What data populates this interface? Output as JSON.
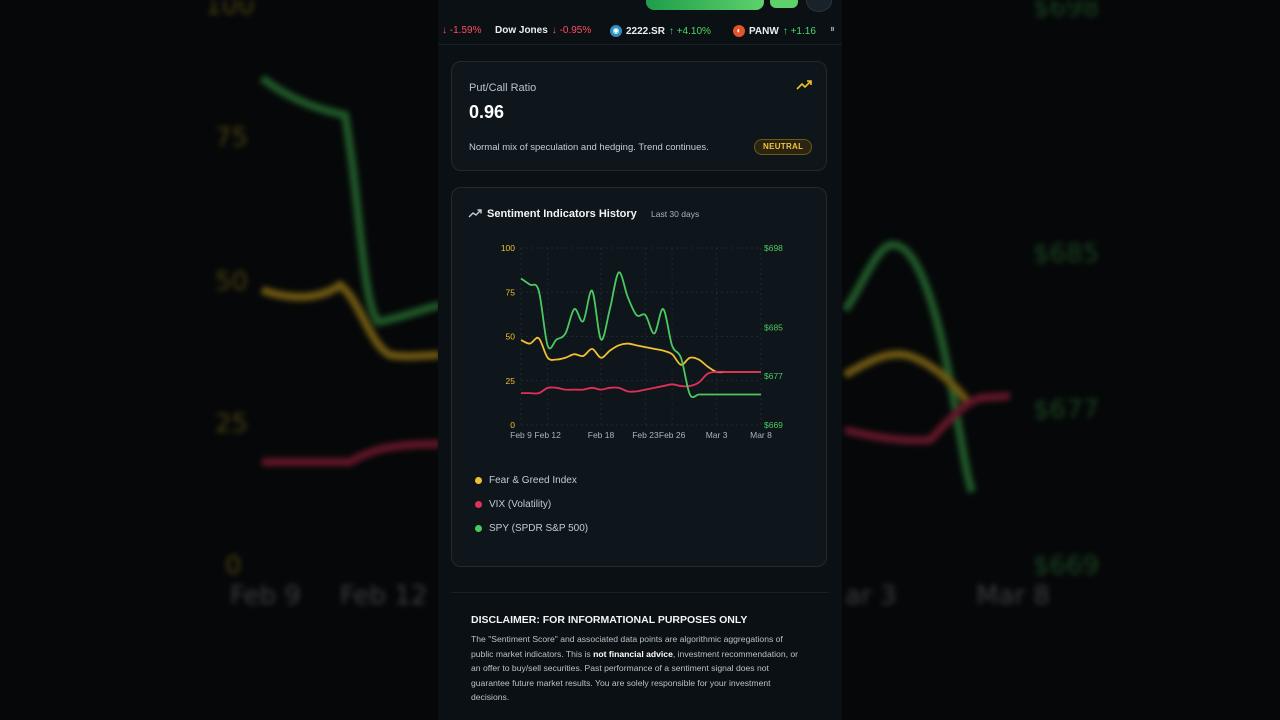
{
  "ticker": [
    {
      "name": "",
      "change": "↓ -1.59%",
      "dir": "down"
    },
    {
      "name": "Dow Jones",
      "change": "↓ -0.95%",
      "dir": "down"
    },
    {
      "name": "2222.SR",
      "change": "↑ +4.10%",
      "dir": "up"
    },
    {
      "name": "PANW",
      "change": "↑ +1.16",
      "dir": "up"
    }
  ],
  "put_call": {
    "title": "Put/Call Ratio",
    "value": "0.96",
    "description": "Normal mix of speculation and hedging. Trend continues.",
    "badge": "NEUTRAL",
    "trend_icon": "trending-up-icon"
  },
  "history": {
    "title": "Sentiment Indicators History",
    "subtitle": "Last 30 days",
    "legend": [
      {
        "label": "Fear & Greed Index",
        "color": "#f0c030"
      },
      {
        "label": "VIX (Volatility)",
        "color": "#e0305a"
      },
      {
        "label": "SPY (SPDR S&P 500)",
        "color": "#4cc860"
      }
    ]
  },
  "chart_data": {
    "type": "line",
    "x": [
      "Feb 9",
      "Feb 10",
      "Feb 11",
      "Feb 12",
      "Feb 13",
      "Feb 14",
      "Feb 15",
      "Feb 16",
      "Feb 17",
      "Feb 18",
      "Feb 19",
      "Feb 20",
      "Feb 21",
      "Feb 22",
      "Feb 23",
      "Feb 24",
      "Feb 25",
      "Feb 26",
      "Feb 27",
      "Feb 28",
      "Mar 1",
      "Mar 2",
      "Mar 3",
      "Mar 4",
      "Mar 5",
      "Mar 6",
      "Mar 7",
      "Mar 8"
    ],
    "x_ticks": [
      "Feb 9",
      "Feb 12",
      "Feb 18",
      "Feb 23",
      "Feb 26",
      "Mar 3",
      "Mar 8"
    ],
    "y_left": {
      "ticks": [
        0,
        25,
        50,
        75,
        100
      ],
      "range": [
        0,
        100
      ]
    },
    "y_right": {
      "ticks": [
        "$669",
        "$677",
        "$685",
        "$698"
      ],
      "range": [
        669,
        698
      ]
    },
    "grid": true,
    "legend_position": "bottom",
    "series": [
      {
        "name": "Fear & Greed Index",
        "axis": "left",
        "color": "#f0c030",
        "values": [
          48,
          46,
          49,
          38,
          37,
          38,
          40,
          39,
          43,
          38,
          42,
          45,
          46,
          45,
          44,
          43,
          42,
          40,
          34,
          38,
          37,
          33,
          30,
          30,
          30,
          30,
          30,
          30
        ]
      },
      {
        "name": "VIX (Volatility)",
        "axis": "left",
        "color": "#e0305a",
        "values": [
          18,
          18,
          18,
          21,
          21,
          20,
          20,
          20,
          21,
          20,
          21,
          21,
          19,
          19,
          20,
          21,
          22,
          23,
          22,
          22,
          24,
          29,
          30,
          30,
          30,
          30,
          30,
          30
        ]
      },
      {
        "name": "SPY (SPDR S&P 500)",
        "axis": "right",
        "color": "#4cc860",
        "values": [
          693,
          692,
          691,
          682,
          683,
          684,
          688,
          686,
          691,
          683,
          688,
          694,
          690,
          687,
          687,
          684,
          688,
          682,
          680,
          674,
          674,
          674,
          674,
          674,
          674,
          674,
          674,
          674
        ]
      }
    ]
  },
  "disclaimer": {
    "title": "DISCLAIMER: FOR INFORMATIONAL PURPOSES ONLY",
    "text_before": "The \"Sentiment Score\" and associated data points are algorithmic aggregations of public market indicators. This is ",
    "text_bold": "not financial advice",
    "text_after": ", investment recommendation, or an offer to buy/sell securities. Past performance of a sentiment signal does not guarantee future market results. You are solely responsible for your investment decisions."
  }
}
